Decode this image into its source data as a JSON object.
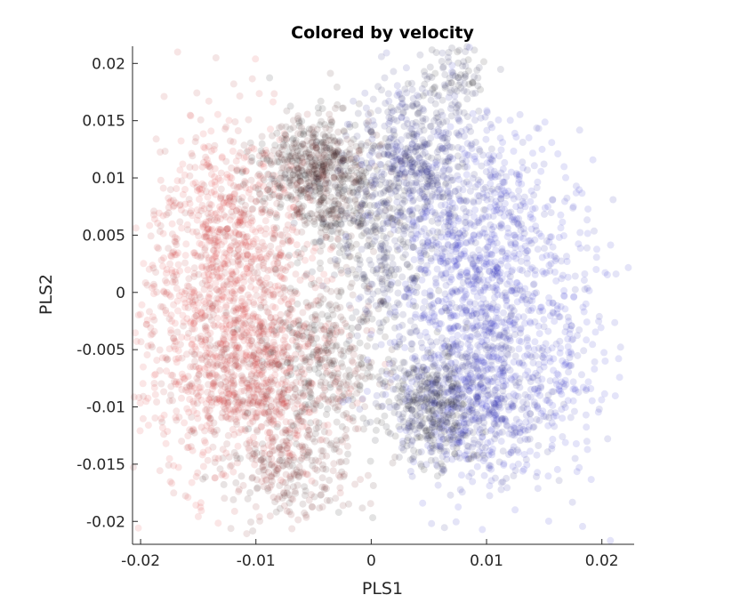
{
  "chart_data": {
    "type": "scatter",
    "title": "Colored by velocity",
    "xlabel": "PLS1",
    "ylabel": "PLS2",
    "xlim": [
      -0.0207,
      0.0228
    ],
    "ylim": [
      -0.022,
      0.0215
    ],
    "xticks": [
      -0.02,
      -0.01,
      0,
      0.01,
      0.02
    ],
    "xtick_labels": [
      "-0.02",
      "-0.01",
      "0",
      "0.01",
      "0.02"
    ],
    "yticks": [
      -0.02,
      -0.015,
      -0.01,
      -0.005,
      0,
      0.005,
      0.01,
      0.015,
      0.02
    ],
    "ytick_labels": [
      "-0.02",
      "-0.015",
      "-0.01",
      "-0.005",
      "0",
      "0.005",
      "0.01",
      "0.015",
      "0.02"
    ],
    "grid": false,
    "box": false,
    "marker_alpha": 0.12,
    "colormap": [
      "#e03030",
      "#111111",
      "#2020d0"
    ],
    "series": [
      {
        "clusters": [
          {
            "cx": -0.0115,
            "cy": 0.003,
            "sx": 0.0035,
            "sy": 0.006,
            "v": 0.05,
            "n": 900
          },
          {
            "cx": -0.01,
            "cy": -0.008,
            "sx": 0.0035,
            "sy": 0.004,
            "v": 0.1,
            "n": 700
          },
          {
            "cx": -0.005,
            "cy": 0.011,
            "sx": 0.0025,
            "sy": 0.0025,
            "v": 0.4,
            "n": 550
          },
          {
            "cx": -0.004,
            "cy": -0.006,
            "sx": 0.0025,
            "sy": 0.004,
            "v": 0.4,
            "n": 350
          },
          {
            "cx": -0.016,
            "cy": -0.004,
            "sx": 0.0025,
            "sy": 0.006,
            "v": 0.0,
            "n": 250
          },
          {
            "cx": -0.002,
            "cy": 0.007,
            "sx": 0.0025,
            "sy": 0.003,
            "v": 0.5,
            "n": 250
          },
          {
            "cx": -0.007,
            "cy": -0.016,
            "sx": 0.003,
            "sy": 0.002,
            "v": 0.3,
            "n": 200
          }
        ]
      },
      {
        "clusters": [
          {
            "cx": 0.009,
            "cy": 0.003,
            "sx": 0.0035,
            "sy": 0.006,
            "v": 0.95,
            "n": 900
          },
          {
            "cx": 0.009,
            "cy": -0.009,
            "sx": 0.0035,
            "sy": 0.004,
            "v": 0.9,
            "n": 650
          },
          {
            "cx": 0.004,
            "cy": 0.012,
            "sx": 0.0025,
            "sy": 0.0035,
            "v": 0.75,
            "n": 500
          },
          {
            "cx": 0.005,
            "cy": -0.01,
            "sx": 0.002,
            "sy": 0.0025,
            "v": 0.6,
            "n": 350
          },
          {
            "cx": 0.016,
            "cy": -0.003,
            "sx": 0.0025,
            "sy": 0.006,
            "v": 1.0,
            "n": 250
          },
          {
            "cx": 0.0015,
            "cy": 0.002,
            "sx": 0.002,
            "sy": 0.004,
            "v": 0.65,
            "n": 200
          },
          {
            "cx": 0.007,
            "cy": 0.019,
            "sx": 0.0015,
            "sy": 0.0015,
            "v": 0.6,
            "n": 80
          }
        ]
      }
    ]
  }
}
